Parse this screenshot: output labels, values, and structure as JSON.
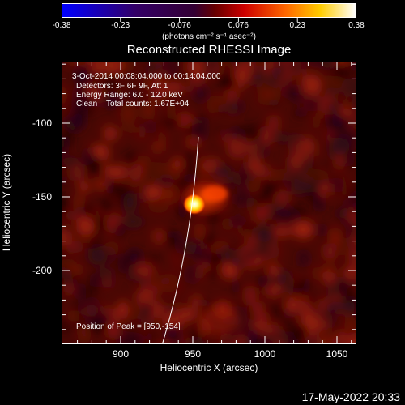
{
  "colorbar": {
    "tick_labels": [
      "-0.38",
      "-0.23",
      "-0.076",
      "0.076",
      "0.23",
      "0.38"
    ],
    "units_label": "(photons cm⁻² s⁻¹ asec⁻²)",
    "colors": {
      "low": "#0000ff",
      "mid": "#330033",
      "high1": "#cc0000",
      "high2": "#ff6600",
      "high3": "#ffcc00",
      "max": "#ffffff"
    }
  },
  "title": "Reconstructed RHESSI Image",
  "annotations": {
    "time_range": "3-Oct-2014 00:08:04.000 to 00:14:04.000",
    "detectors": "Detectors: 3F 6F 9F, Att 1",
    "energy_range": "Energy Range: 6.0 - 12.0 keV",
    "clean": "Clean    Total counts: 1.67E+04",
    "peak": "Position of Peak = [950,-154]"
  },
  "axes": {
    "xlabel": "Heliocentric X (arcsec)",
    "ylabel": "Heliocentric Y (arcsec)",
    "x_ticks": [
      "900",
      "950",
      "1000",
      "1050"
    ],
    "y_ticks": [
      "-100",
      "-150",
      "-200"
    ]
  },
  "timestamp": "17-May-2022 20:33"
}
